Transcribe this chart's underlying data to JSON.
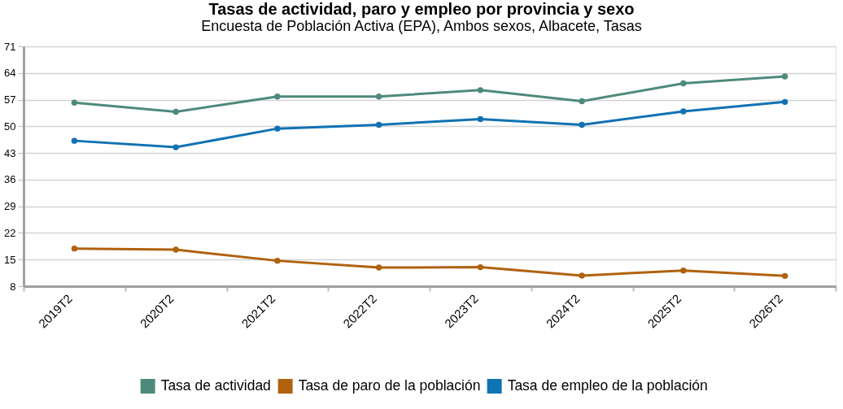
{
  "chart_data": {
    "type": "line",
    "title": "Tasas de actividad, paro y empleo por provincia y sexo",
    "subtitle": "Encuesta de Población Activa (EPA), Ambos sexos, Albacete, Tasas",
    "categories": [
      "2019T2",
      "2020T2",
      "2021T2",
      "2022T2",
      "2023T2",
      "2024T2",
      "2025T2",
      "2026T2"
    ],
    "series": [
      {
        "name": "Tasa de actividad",
        "color": "#4e8a7c",
        "values": [
          56.2,
          53.8,
          57.8,
          57.8,
          59.5,
          56.6,
          61.3,
          63.1
        ]
      },
      {
        "name": "Tasa de paro de la población",
        "color": "#b0620f",
        "values": [
          17.9,
          17.6,
          14.7,
          12.9,
          13.0,
          10.8,
          12.1,
          10.7
        ]
      },
      {
        "name": "Tasa de empleo de la población",
        "color": "#1172b3",
        "values": [
          46.2,
          44.5,
          49.4,
          50.4,
          51.9,
          50.4,
          53.9,
          56.4
        ]
      }
    ],
    "ylim": [
      8,
      71
    ],
    "yticks": [
      8,
      15,
      22,
      29,
      36,
      43,
      50,
      57,
      64,
      71
    ],
    "grid": "y",
    "legend": "bottom",
    "marker": "circle",
    "line_style": "solid"
  }
}
